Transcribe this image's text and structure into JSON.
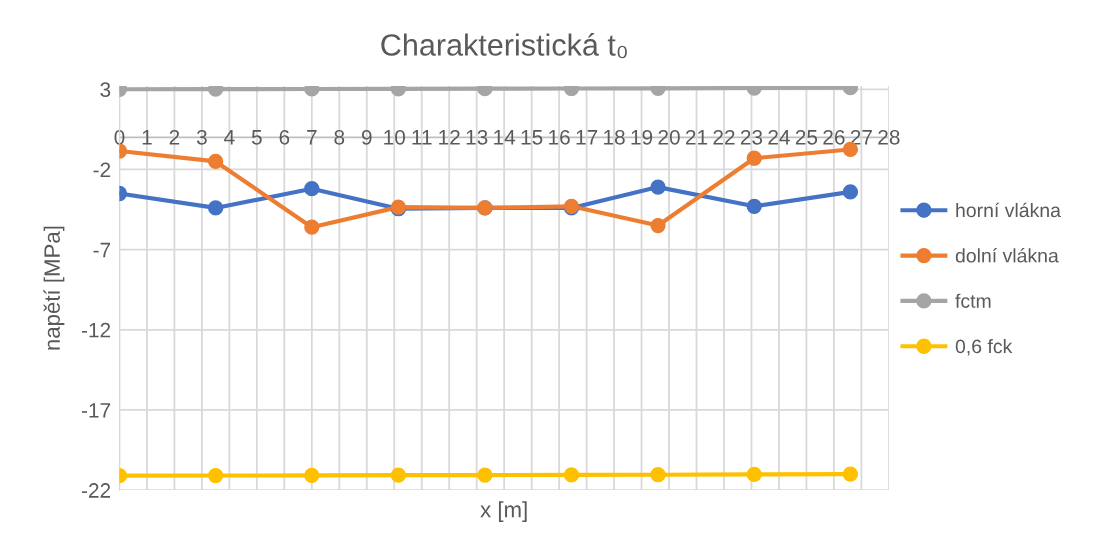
{
  "chart_data": {
    "type": "line",
    "title": "Charakteristická t₀",
    "xlabel": "x [m]",
    "ylabel": "napětí [MPa]",
    "x": [
      0,
      3.5,
      7,
      10.15,
      13.3,
      16.45,
      19.6,
      23.1,
      26.6
    ],
    "series": [
      {
        "name": "horní vlákna",
        "color": "#4472c4",
        "values": [
          -3.5,
          -4.4,
          -3.2,
          -4.45,
          -4.4,
          -4.4,
          -3.1,
          -4.3,
          -3.4
        ]
      },
      {
        "name": "dolní vlákna",
        "color": "#ed7d31",
        "values": [
          -0.85,
          -1.5,
          -5.6,
          -4.35,
          -4.4,
          -4.3,
          -5.5,
          -1.3,
          -0.75
        ]
      },
      {
        "name": "fctm",
        "color": "#a5a5a5",
        "values": [
          3.0,
          3.01,
          3.02,
          3.03,
          3.04,
          3.05,
          3.06,
          3.08,
          3.1
        ]
      },
      {
        "name": "0,6 fck",
        "color": "#ffc000",
        "values": [
          -21.1,
          -21.09,
          -21.08,
          -21.07,
          -21.06,
          -21.05,
          -21.04,
          -21.02,
          -21.0
        ]
      }
    ],
    "xlim": [
      0,
      28
    ],
    "xticks": [
      0,
      1,
      2,
      3,
      4,
      5,
      6,
      7,
      8,
      9,
      10,
      11,
      12,
      13,
      14,
      15,
      16,
      17,
      18,
      19,
      20,
      21,
      22,
      23,
      24,
      25,
      26,
      27,
      28
    ],
    "ylim": [
      -22,
      3.2
    ],
    "yticks": [
      3,
      -2,
      -7,
      -12,
      -17,
      -22
    ],
    "grid": true,
    "legend": "right",
    "marker": "circle",
    "line_style": "solid"
  }
}
